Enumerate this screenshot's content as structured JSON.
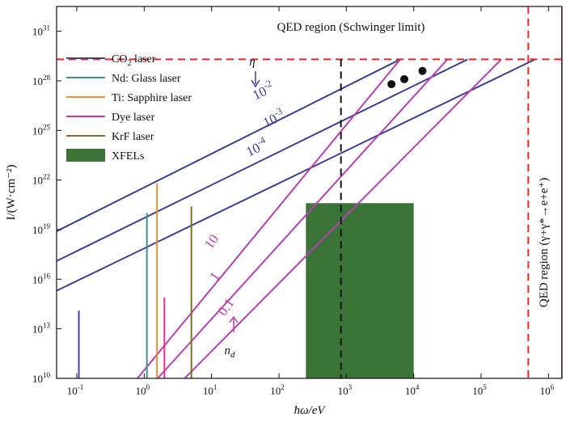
{
  "chart_data": {
    "type": "line",
    "xlabel": "ħω/eV",
    "ylabel": "I/(W·cm⁻²)",
    "x_scale": "log",
    "y_scale": "log",
    "xlim_log10": [
      -1.3,
      6.2
    ],
    "ylim_log10": [
      10,
      32.5
    ],
    "x_ticks": [
      {
        "exp": -1,
        "base": "10",
        "sup": "-1"
      },
      {
        "exp": 0,
        "base": "10",
        "sup": "0"
      },
      {
        "exp": 1,
        "base": "10",
        "sup": "1"
      },
      {
        "exp": 2,
        "base": "10",
        "sup": "2"
      },
      {
        "exp": 3,
        "base": "10",
        "sup": "3"
      },
      {
        "exp": 4,
        "base": "10",
        "sup": "4"
      },
      {
        "exp": 5,
        "base": "10",
        "sup": "5"
      },
      {
        "exp": 6,
        "base": "10",
        "sup": "6"
      }
    ],
    "y_ticks": [
      {
        "exp": 10,
        "base": "10",
        "sup": "10"
      },
      {
        "exp": 13,
        "base": "10",
        "sup": "13"
      },
      {
        "exp": 16,
        "base": "10",
        "sup": "16"
      },
      {
        "exp": 19,
        "base": "10",
        "sup": "19"
      },
      {
        "exp": 22,
        "base": "10",
        "sup": "22"
      },
      {
        "exp": 25,
        "base": "10",
        "sup": "25"
      },
      {
        "exp": 28,
        "base": "10",
        "sup": "28"
      },
      {
        "exp": 31,
        "base": "10",
        "sup": "31"
      }
    ],
    "schwinger_limit_log10_I": 29.3,
    "qed_photon_limit_log10_energy": 5.7,
    "dashed_black_log10_energy": 2.92,
    "eta_lines": [
      {
        "label": "10",
        "sup": "-2",
        "from_log10": [
          -1.3,
          18.9
        ],
        "to_log10": [
          3.8,
          29.3
        ],
        "color": "#3d3f95"
      },
      {
        "label": "10",
        "sup": "-3",
        "from_log10": [
          -1.3,
          17.1
        ],
        "to_log10": [
          4.8,
          29.3
        ],
        "color": "#3d3f95"
      },
      {
        "label": "10",
        "sup": "-4",
        "from_log10": [
          -1.3,
          15.3
        ],
        "to_log10": [
          5.8,
          29.3
        ],
        "color": "#3d3f95"
      }
    ],
    "nd_lines": [
      {
        "label": "10",
        "from_log10": [
          -0.1,
          10
        ],
        "to_log10": [
          3.8,
          29.3
        ],
        "color": "#b540b0"
      },
      {
        "label": "1",
        "from_log10": [
          0.2,
          10
        ],
        "to_log10": [
          4.5,
          29.3
        ],
        "color": "#b540b0"
      },
      {
        "label": "0.1",
        "from_log10": [
          0.6,
          10
        ],
        "to_log10": [
          5.3,
          29.3
        ],
        "color": "#b540b0"
      }
    ],
    "dots_log10": [
      [
        3.67,
        27.8
      ],
      [
        3.86,
        28.1
      ],
      [
        4.13,
        28.6
      ]
    ],
    "laser_lines": [
      {
        "name": "CO₂ laser",
        "log10_energy": -0.97,
        "log10_I_max": 14.1,
        "color": "#4a3d96"
      },
      {
        "name": "Nd: Glass laser",
        "log10_energy": 0.04,
        "log10_I_max": 20.0,
        "color": "#3f8f8a"
      },
      {
        "name": "Ti: Sapphire laser",
        "log10_energy": 0.19,
        "log10_I_max": 21.8,
        "color": "#ef8c3a"
      },
      {
        "name": "Dye laser",
        "log10_energy": 0.3,
        "log10_I_max": 14.9,
        "color": "#e5308d"
      },
      {
        "name": "KrF laser",
        "log10_energy": 0.7,
        "log10_I_max": 20.4,
        "color": "#7b6f2c"
      }
    ],
    "xfel": {
      "name": "XFELs",
      "log10_energy_range": [
        2.4,
        4.0
      ],
      "log10_I_range": [
        10,
        20.6
      ],
      "color": "#3a7537"
    },
    "legend": [
      {
        "name": "CO",
        "sub": "2",
        "rest": " laser",
        "color": "#4a3d96",
        "kind": "line"
      },
      {
        "name": "Nd: Glass laser",
        "sub": "",
        "rest": "",
        "color": "#3f8f8a",
        "kind": "line"
      },
      {
        "name": "Ti: Sapphire laser",
        "sub": "",
        "rest": "",
        "color": "#ef8c3a",
        "kind": "line"
      },
      {
        "name": "Dye laser",
        "sub": "",
        "rest": "",
        "color": "#e5308d",
        "kind": "line"
      },
      {
        "name": "KrF laser",
        "sub": "",
        "rest": "",
        "color": "#7b6f2c",
        "kind": "line"
      },
      {
        "name": "XFELs",
        "sub": "",
        "rest": "",
        "color": "#3a7537",
        "kind": "rect"
      }
    ],
    "annotations": {
      "qed_schwinger": "QED region (Schwinger limit)",
      "qed_pair": "QED region (γ+γ*→e+e⁺)",
      "eta_symbol": "η",
      "nd_symbol": "n",
      "nd_sub": "d"
    },
    "grid": false,
    "legend_position": "top-left"
  }
}
